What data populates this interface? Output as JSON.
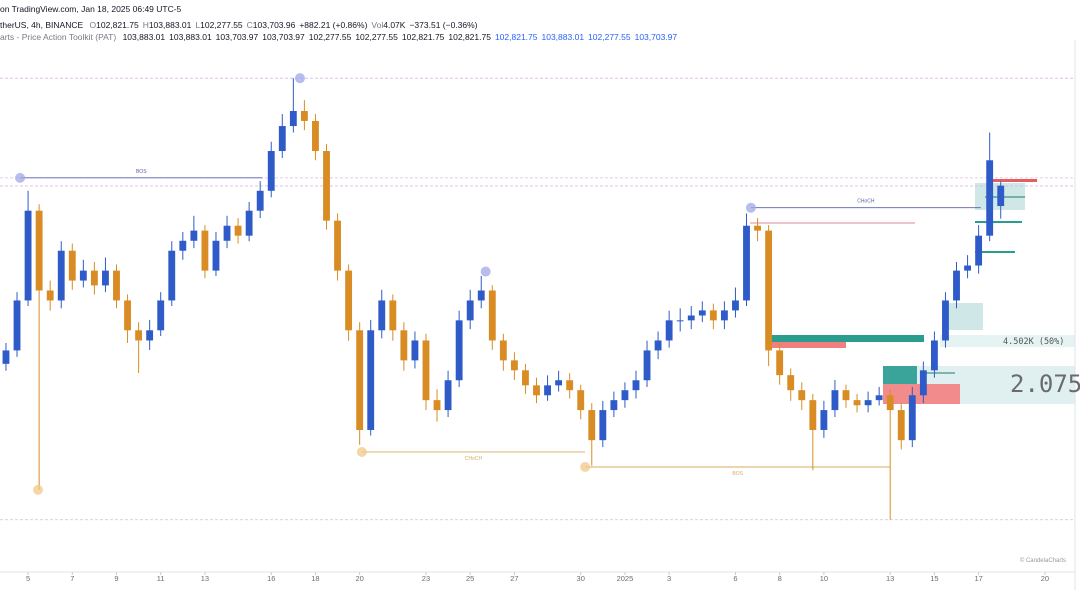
{
  "header": {
    "source": "on TradingView.com, Jan 18, 2025 06:49 UTC-5",
    "symbol": "therUS, 4h, BINANCE",
    "quote": [
      "O",
      "102,821.75",
      "H",
      "103,883.01",
      "L",
      "102,277.55",
      "C",
      "103,703.96",
      "+882.21 (+0.86%)",
      "Vol",
      "4.07K",
      "−373.51 (−0.36%)"
    ],
    "indicator": "arts - Price Action Toolkit (PAT)",
    "indicator_values": [
      "103,883.01",
      "103,883.01",
      "103,703.97",
      "103,703.97",
      "102,277.55",
      "102,277.55",
      "102,821.75",
      "102,821.75"
    ],
    "indicator_values_blue": [
      "102,821.75",
      "103,883.01",
      "102,277.55",
      "103,703.97"
    ]
  },
  "overlay": {
    "fib_label": "4.502K (50%)",
    "ratio": "2.075",
    "watermark": "© CandelaCharts"
  },
  "chart_data": {
    "type": "candlestick",
    "up_color": "#2f5bc9",
    "down_color": "#d98c24",
    "xlim": [
      3.73,
      52.36
    ],
    "ylim": [
      87000,
      110000
    ],
    "xticks": [
      5,
      7,
      9,
      11,
      13,
      16,
      18,
      20,
      23,
      25,
      27,
      30,
      {
        "value": 32,
        "label": "2025"
      },
      {
        "value": 34,
        "label": "3"
      },
      {
        "value": 37,
        "label": "6"
      },
      {
        "value": 39,
        "label": "8"
      },
      {
        "value": 41,
        "label": "10"
      },
      {
        "value": 44,
        "label": "13"
      },
      {
        "value": 46,
        "label": "15"
      },
      {
        "value": 48,
        "label": "17"
      },
      {
        "value": 51,
        "label": "20"
      }
    ],
    "x": [
      4,
      4.5,
      5,
      5.5,
      6,
      6.5,
      7,
      7.5,
      8,
      8.5,
      9,
      9.5,
      10,
      10.5,
      11,
      11.5,
      12,
      12.5,
      13,
      13.5,
      14,
      14.5,
      15,
      15.5,
      16,
      16.5,
      17,
      17.5,
      18,
      18.5,
      19,
      19.5,
      20,
      20.5,
      21,
      21.5,
      22,
      22.5,
      23,
      23.5,
      24,
      24.5,
      25,
      25.5,
      26,
      26.5,
      27,
      27.5,
      28,
      28.5,
      29,
      29.5,
      30,
      30.5,
      31,
      31.5,
      32,
      32.5,
      33,
      33.5,
      34,
      34.5,
      35,
      35.5,
      36,
      36.5,
      37,
      37.5,
      38,
      38.5,
      39,
      39.5,
      40,
      40.5,
      41,
      41.5,
      42,
      42.5,
      43,
      43.5,
      44,
      44.5,
      45,
      45.5,
      46,
      46.5,
      47,
      47.5,
      48,
      48.5,
      49
    ],
    "ohlc": [
      [
        96000,
        96900,
        95700,
        96580
      ],
      [
        96580,
        99100,
        96300,
        98740
      ],
      [
        98740,
        103480,
        98500,
        102620
      ],
      [
        102620,
        102900,
        90550,
        99170
      ],
      [
        99170,
        99600,
        98300,
        98740
      ],
      [
        98740,
        101300,
        98400,
        100890
      ],
      [
        100890,
        101200,
        99200,
        99600
      ],
      [
        99600,
        100500,
        99300,
        100030
      ],
      [
        100030,
        100400,
        99000,
        99390
      ],
      [
        99390,
        100600,
        99100,
        100030
      ],
      [
        100030,
        100300,
        98400,
        98740
      ],
      [
        98740,
        99000,
        96900,
        97450
      ],
      [
        97450,
        97800,
        95600,
        97010
      ],
      [
        97010,
        97900,
        96600,
        97450
      ],
      [
        97450,
        99100,
        97200,
        98740
      ],
      [
        98740,
        101300,
        98500,
        100890
      ],
      [
        100890,
        101700,
        100500,
        101320
      ],
      [
        101320,
        102400,
        101000,
        101760
      ],
      [
        101760,
        102000,
        99700,
        100030
      ],
      [
        100030,
        101700,
        99800,
        101320
      ],
      [
        101320,
        102400,
        101000,
        101970
      ],
      [
        101970,
        102300,
        101200,
        101540
      ],
      [
        101540,
        103000,
        101300,
        102620
      ],
      [
        102620,
        103900,
        102300,
        103480
      ],
      [
        103480,
        105600,
        103200,
        105200
      ],
      [
        105200,
        106800,
        104900,
        106280
      ],
      [
        106280,
        108350,
        106000,
        106930
      ],
      [
        106930,
        107400,
        106100,
        106500
      ],
      [
        106500,
        106800,
        104800,
        105200
      ],
      [
        105200,
        105500,
        101800,
        102190
      ],
      [
        102190,
        102500,
        99600,
        100030
      ],
      [
        100030,
        100300,
        97000,
        97450
      ],
      [
        97450,
        97800,
        92500,
        93140
      ],
      [
        93140,
        97900,
        92900,
        97450
      ],
      [
        97450,
        99200,
        97100,
        98740
      ],
      [
        98740,
        99000,
        97000,
        97450
      ],
      [
        97450,
        97800,
        95700,
        96150
      ],
      [
        96150,
        97400,
        95800,
        97010
      ],
      [
        97010,
        97300,
        94000,
        94430
      ],
      [
        94430,
        94900,
        93500,
        94000
      ],
      [
        94000,
        95700,
        93700,
        95290
      ],
      [
        95290,
        98300,
        95000,
        97880
      ],
      [
        97880,
        99200,
        97500,
        98740
      ],
      [
        98740,
        99800,
        98400,
        99170
      ],
      [
        99170,
        99400,
        96600,
        97010
      ],
      [
        97010,
        97300,
        95700,
        96150
      ],
      [
        96150,
        96500,
        95300,
        95720
      ],
      [
        95720,
        96000,
        94700,
        95070
      ],
      [
        95070,
        95400,
        94300,
        94640
      ],
      [
        94640,
        95500,
        94400,
        95070
      ],
      [
        95070,
        95700,
        94800,
        95290
      ],
      [
        95290,
        95600,
        94500,
        94860
      ],
      [
        94860,
        95100,
        93600,
        94000
      ],
      [
        94000,
        94300,
        91600,
        92700
      ],
      [
        92700,
        94400,
        92400,
        94000
      ],
      [
        94000,
        94800,
        93700,
        94430
      ],
      [
        94430,
        95200,
        94100,
        94860
      ],
      [
        94860,
        95700,
        94500,
        95290
      ],
      [
        95290,
        97000,
        95000,
        96580
      ],
      [
        96580,
        97400,
        96200,
        97010
      ],
      [
        97010,
        98300,
        96700,
        97880
      ],
      [
        97880,
        98400,
        97400,
        97880
      ],
      [
        97880,
        98500,
        97500,
        98090
      ],
      [
        98090,
        98700,
        97800,
        98310
      ],
      [
        98310,
        98600,
        97500,
        97880
      ],
      [
        97880,
        98700,
        97500,
        98310
      ],
      [
        98310,
        99300,
        98000,
        98740
      ],
      [
        98740,
        102500,
        98500,
        101970
      ],
      [
        101970,
        102300,
        101300,
        101760
      ],
      [
        101760,
        102000,
        95900,
        96580
      ],
      [
        96580,
        96900,
        95100,
        95510
      ],
      [
        95510,
        95800,
        94400,
        94860
      ],
      [
        94860,
        95200,
        94000,
        94430
      ],
      [
        94430,
        94700,
        91400,
        93140
      ],
      [
        93140,
        94400,
        92800,
        94000
      ],
      [
        94000,
        95300,
        93700,
        94860
      ],
      [
        94860,
        95100,
        94100,
        94430
      ],
      [
        94430,
        94700,
        93900,
        94210
      ],
      [
        94210,
        94800,
        93900,
        94430
      ],
      [
        94430,
        95000,
        94200,
        94640
      ],
      [
        94640,
        94900,
        89260,
        94000
      ],
      [
        94000,
        94300,
        92300,
        92700
      ],
      [
        92700,
        95000,
        92400,
        94640
      ],
      [
        94640,
        96100,
        94300,
        95720
      ],
      [
        95720,
        97400,
        95400,
        97010
      ],
      [
        97010,
        99100,
        96700,
        98740
      ],
      [
        98740,
        100400,
        98400,
        100030
      ],
      [
        100030,
        100700,
        99700,
        100250
      ],
      [
        100250,
        102000,
        99900,
        101540
      ],
      [
        101540,
        106000,
        101300,
        104800
      ],
      [
        102821.75,
        103883.01,
        102277.55,
        103703.96
      ]
    ],
    "dashed_levels": [
      108350,
      104040,
      103690,
      89260
    ],
    "levels": [
      {
        "label": "BOS",
        "color": "#5b5fa8",
        "x": [
          4.64,
          15.6
        ],
        "y": 104040
      },
      {
        "label": "CHoCH",
        "color": "#d9a85f",
        "x": [
          20.1,
          30.2
        ],
        "y": 92190
      },
      {
        "label": "BOS",
        "color": "#d9a85f",
        "x": [
          30.2,
          44.0
        ],
        "y": 91540
      },
      {
        "label": "CHoCH",
        "color": "#5b5fa8",
        "x": [
          37.7,
          48.1
        ],
        "y": 102750
      }
    ],
    "swings": [
      {
        "x": 4.64,
        "y": 104040,
        "color": "#9fa8e8"
      },
      {
        "x": 17.3,
        "y": 108350,
        "color": "#9fa8e8"
      },
      {
        "x": 5.45,
        "y": 90550,
        "color": "#f2c98a"
      },
      {
        "x": 25.7,
        "y": 99990,
        "color": "#9fa8e8"
      },
      {
        "x": 20.1,
        "y": 92190,
        "color": "#f2c98a"
      },
      {
        "x": 30.2,
        "y": 91540,
        "color": "#f2c98a"
      },
      {
        "x": 37.7,
        "y": 102750,
        "color": "#9fa8e8"
      }
    ]
  }
}
